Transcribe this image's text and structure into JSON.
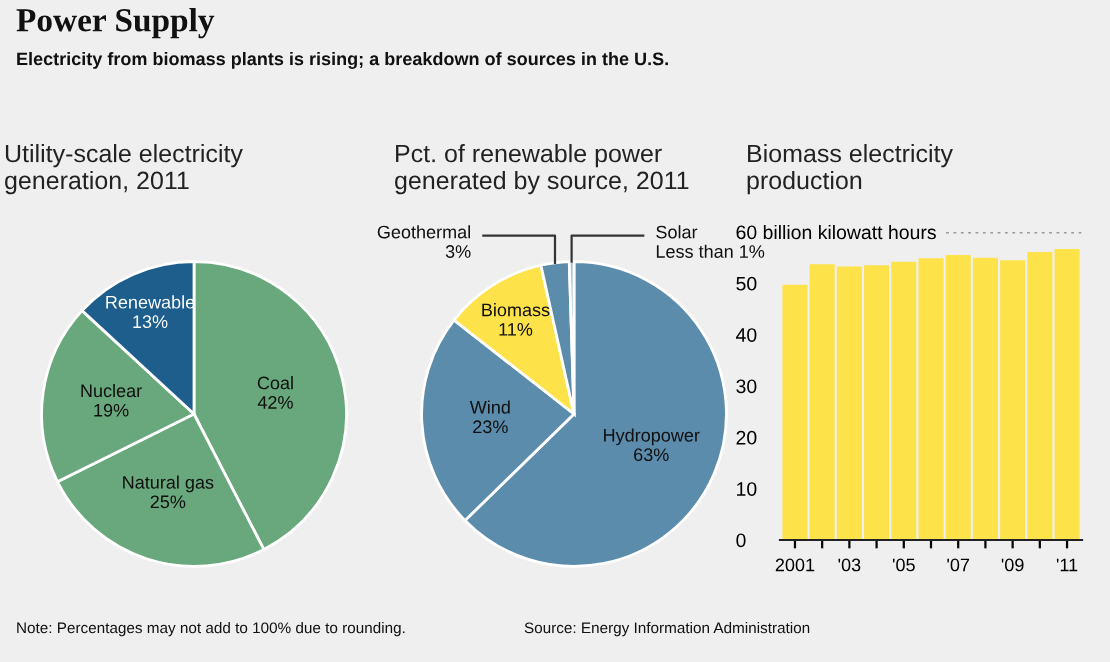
{
  "chart_data": [
    {
      "type": "pie",
      "title": "Utility-scale electricity\ngeneration, 2011",
      "categories": [
        "Coal",
        "Natural gas",
        "Nuclear",
        "Renewable"
      ],
      "values": [
        42,
        25,
        19,
        13
      ],
      "value_labels": [
        "42%",
        "25%",
        "19%",
        "13%"
      ],
      "colors": [
        "#68a87c",
        "#68a87c",
        "#68a87c",
        "#1d5e8c"
      ],
      "annotations": [
        "Power Supply",
        "Electricity from biomass plants is rising; a breakdown of sources in the U.S.",
        "Note: Percentages may not add to 100% due to rounding."
      ]
    },
    {
      "type": "pie",
      "title": "Pct. of renewable power\ngenerated by source, 2011",
      "categories": [
        "Hydropower",
        "Wind",
        "Biomass",
        "Geothermal",
        "Solar"
      ],
      "values": [
        63,
        23,
        11,
        3,
        0.5
      ],
      "value_labels": [
        "63%",
        "23%",
        "11%",
        "3%",
        "Less than 1%"
      ],
      "colors": [
        "#5b8cab",
        "#5b8cab",
        "#fde24a",
        "#5b8cab",
        "#a8c5d6"
      ],
      "annotations": [
        "Source: Energy Information Administration"
      ]
    },
    {
      "type": "bar",
      "title": "Biomass electricity\nproduction",
      "categories": [
        "2001",
        null,
        "'03",
        null,
        "'05",
        null,
        "'07",
        null,
        "'09",
        null,
        "'11"
      ],
      "values": [
        49.7,
        53.7,
        53.3,
        53.5,
        54.2,
        54.9,
        55.5,
        55.0,
        54.5,
        56.1,
        56.7
      ],
      "color": "#fde24a",
      "ylim": [
        0,
        60
      ],
      "yticks": [
        0,
        10,
        20,
        30,
        40,
        50,
        {
          "value": 60,
          "label": "60 billion kilowatt hours"
        }
      ],
      "ref_lines": [
        {
          "axis": "y",
          "value": 60,
          "line_style": "dotted",
          "color": "#999999"
        }
      ],
      "grid": false
    }
  ]
}
